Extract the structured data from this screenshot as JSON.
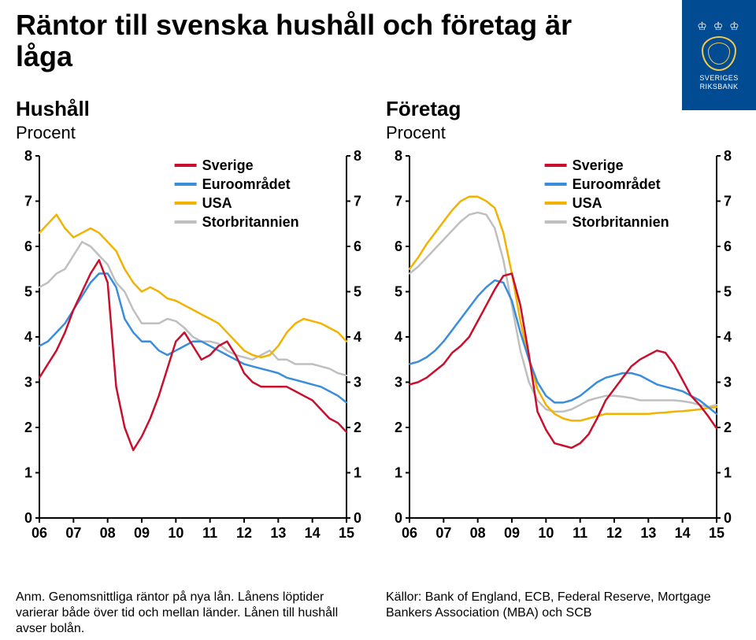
{
  "title": "Räntor till svenska hushåll och företag är låga",
  "logo": {
    "line1": "SVERIGES",
    "line2": "RIKSBANK"
  },
  "footnote_left": "Anm. Genomsnittliga räntor på nya lån. Lånens löptider varierar både över tid och mellan länder. Lånen till hushåll avser bolån.",
  "footnote_right": "Källor: Bank of England, ECB, Federal Reserve, Mortgage Bankers Association (MBA) och SCB",
  "chart_common": {
    "type": "line",
    "x_categories": [
      "06",
      "07",
      "08",
      "09",
      "10",
      "11",
      "12",
      "13",
      "14",
      "15"
    ],
    "ylim": [
      0,
      8
    ],
    "ytick_step": 1,
    "axis_color": "#000000",
    "axis_width": 2,
    "tick_fontsize": 18,
    "tick_fontweight": "bold",
    "line_width": 2.5,
    "legend_fontsize": 18,
    "legend_fontweight": "bold",
    "legend_swatch_w": 28,
    "background_color": "#ffffff",
    "series_colors": {
      "Sverige": "#c8102e",
      "Euroområdet": "#3a8ddb",
      "USA": "#f2b300",
      "Storbritannien": "#bfbfbf"
    },
    "legend_order": [
      "Sverige",
      "Euroområdet",
      "USA",
      "Storbritannien"
    ]
  },
  "charts": [
    {
      "key": "hushall",
      "heading": "Hushåll",
      "subheading": "Procent",
      "legend_pos": "top-right-inside",
      "series": {
        "Sverige": [
          3.1,
          3.4,
          3.7,
          4.1,
          4.6,
          5.0,
          5.4,
          5.7,
          5.2,
          2.9,
          2.0,
          1.5,
          1.8,
          2.2,
          2.7,
          3.3,
          3.9,
          4.1,
          3.8,
          3.5,
          3.6,
          3.8,
          3.9,
          3.6,
          3.2,
          3.0,
          2.9,
          2.9,
          2.9,
          2.9,
          2.8,
          2.7,
          2.6,
          2.4,
          2.2,
          2.1,
          1.9
        ],
        "Euroområdet": [
          3.8,
          3.9,
          4.1,
          4.3,
          4.6,
          4.9,
          5.2,
          5.4,
          5.4,
          5.1,
          4.4,
          4.1,
          3.9,
          3.9,
          3.7,
          3.6,
          3.7,
          3.8,
          3.9,
          3.9,
          3.8,
          3.7,
          3.6,
          3.5,
          3.4,
          3.35,
          3.3,
          3.25,
          3.2,
          3.1,
          3.05,
          3.0,
          2.95,
          2.9,
          2.8,
          2.7,
          2.55
        ],
        "USA": [
          6.3,
          6.5,
          6.7,
          6.4,
          6.2,
          6.3,
          6.4,
          6.3,
          6.1,
          5.9,
          5.5,
          5.2,
          5.0,
          5.1,
          5.0,
          4.85,
          4.8,
          4.7,
          4.6,
          4.5,
          4.4,
          4.3,
          4.1,
          3.9,
          3.7,
          3.6,
          3.55,
          3.6,
          3.8,
          4.1,
          4.3,
          4.4,
          4.35,
          4.3,
          4.2,
          4.1,
          3.9
        ],
        "Storbritannien": [
          5.1,
          5.2,
          5.4,
          5.5,
          5.8,
          6.1,
          6.0,
          5.8,
          5.6,
          5.2,
          5.0,
          4.6,
          4.3,
          4.3,
          4.3,
          4.4,
          4.35,
          4.2,
          4.0,
          3.9,
          3.9,
          3.85,
          3.7,
          3.6,
          3.55,
          3.5,
          3.6,
          3.7,
          3.5,
          3.5,
          3.4,
          3.4,
          3.4,
          3.35,
          3.3,
          3.2,
          3.15
        ]
      }
    },
    {
      "key": "foretag",
      "heading": "Företag",
      "subheading": "Procent",
      "legend_pos": "top-right-inside",
      "series": {
        "Sverige": [
          2.95,
          3.0,
          3.1,
          3.25,
          3.4,
          3.65,
          3.8,
          4.0,
          4.35,
          4.7,
          5.05,
          5.35,
          5.4,
          4.7,
          3.6,
          2.35,
          1.95,
          1.65,
          1.6,
          1.55,
          1.65,
          1.85,
          2.2,
          2.6,
          2.85,
          3.1,
          3.35,
          3.5,
          3.6,
          3.7,
          3.65,
          3.4,
          3.05,
          2.7,
          2.5,
          2.25,
          1.98
        ],
        "Euroområdet": [
          3.4,
          3.45,
          3.55,
          3.7,
          3.9,
          4.15,
          4.4,
          4.65,
          4.9,
          5.1,
          5.25,
          5.2,
          4.8,
          4.1,
          3.5,
          3.0,
          2.7,
          2.55,
          2.55,
          2.6,
          2.7,
          2.85,
          3.0,
          3.1,
          3.15,
          3.2,
          3.2,
          3.15,
          3.05,
          2.95,
          2.9,
          2.85,
          2.8,
          2.7,
          2.6,
          2.45,
          2.3
        ],
        "USA": [
          5.5,
          5.75,
          6.05,
          6.3,
          6.55,
          6.8,
          7.0,
          7.1,
          7.1,
          7.0,
          6.85,
          6.3,
          5.4,
          4.35,
          3.5,
          2.85,
          2.5,
          2.3,
          2.2,
          2.15,
          2.15,
          2.2,
          2.25,
          2.3,
          2.3,
          2.3,
          2.3,
          2.3,
          2.3,
          2.32,
          2.33,
          2.35,
          2.36,
          2.38,
          2.4,
          2.43,
          2.45
        ],
        "Storbritannien": [
          5.4,
          5.55,
          5.75,
          5.95,
          6.15,
          6.35,
          6.55,
          6.7,
          6.75,
          6.7,
          6.4,
          5.7,
          4.7,
          3.7,
          3.0,
          2.6,
          2.4,
          2.35,
          2.35,
          2.4,
          2.5,
          2.6,
          2.65,
          2.7,
          2.7,
          2.68,
          2.65,
          2.6,
          2.6,
          2.6,
          2.6,
          2.6,
          2.58,
          2.55,
          2.5,
          2.45,
          2.5
        ]
      }
    }
  ]
}
